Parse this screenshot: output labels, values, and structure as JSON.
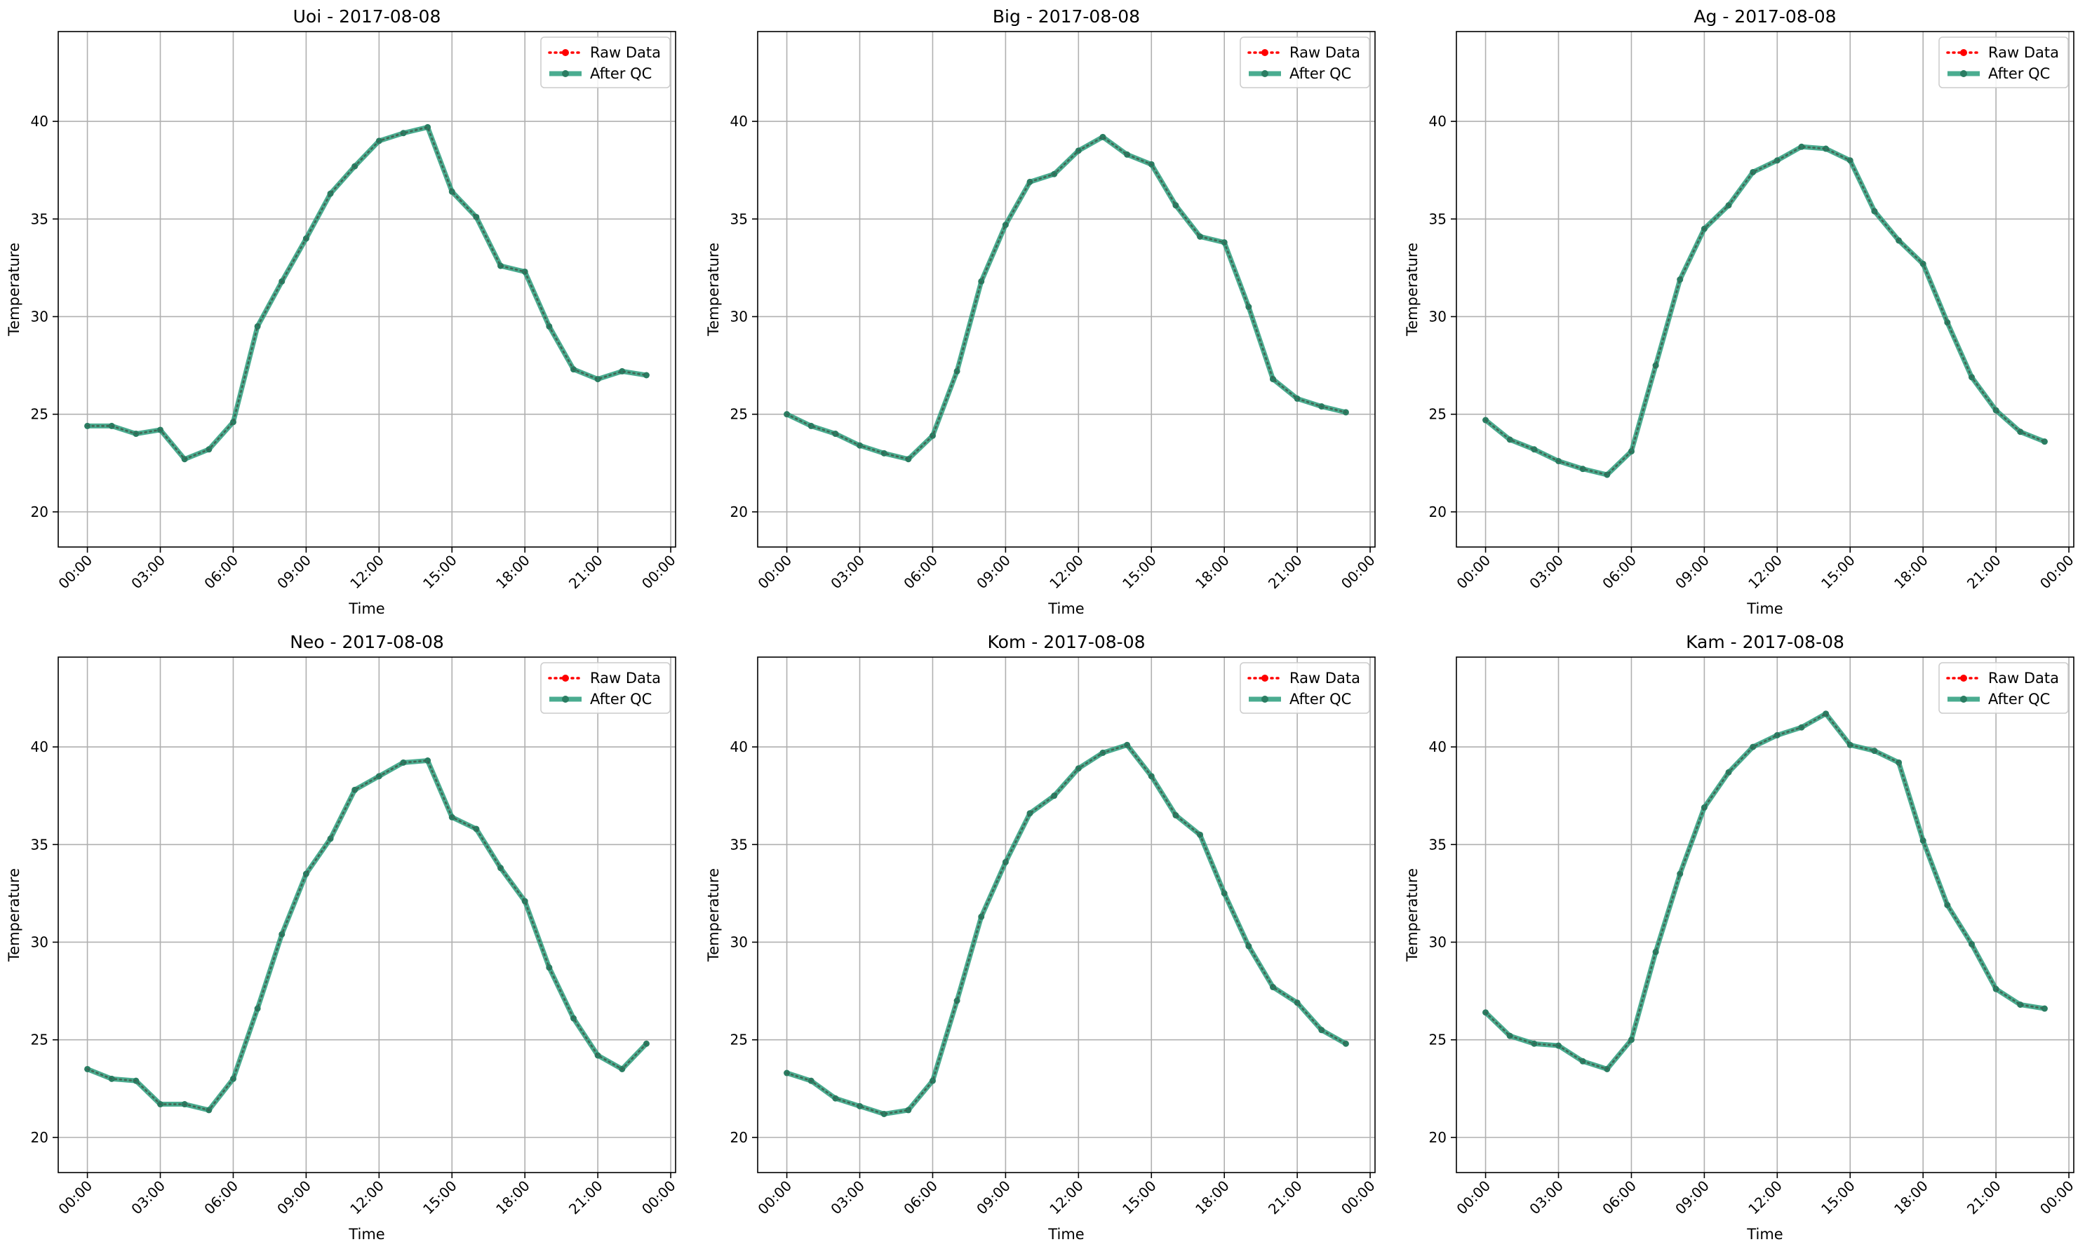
{
  "figure": {
    "colors": {
      "raw": "#ff0000",
      "qc": "#2a9d7c",
      "qc_marker": "#2a7d62",
      "grid": "#b0b0b0",
      "axes": "#000000"
    },
    "legend": [
      "Raw Data",
      "After QC"
    ],
    "legend_placement": "top-right",
    "grid": true,
    "xlabel": "Time",
    "ylabel": "Temperature"
  },
  "chart_data": [
    {
      "type": "line",
      "title": "Uoi - 2017-08-08",
      "xlabel": "Time",
      "ylabel": "Temperature",
      "x_unit": "hour",
      "x": [
        0,
        1,
        2,
        3,
        4,
        5,
        6,
        7,
        8,
        9,
        10,
        11,
        12,
        13,
        14,
        15,
        16,
        17,
        18,
        19,
        20,
        21,
        22,
        23
      ],
      "xlim": [
        -1.2,
        24.2
      ],
      "ylim": [
        18.2,
        44.6
      ],
      "xticks": [
        0,
        3,
        6,
        9,
        12,
        15,
        18,
        21,
        24
      ],
      "xtick_labels": [
        "00:00",
        "03:00",
        "06:00",
        "09:00",
        "12:00",
        "15:00",
        "18:00",
        "21:00",
        "00:00"
      ],
      "yticks": [
        20,
        25,
        30,
        35,
        40
      ],
      "ytick_labels": [
        "20",
        "25",
        "30",
        "35",
        "40"
      ],
      "grid": true,
      "legend_placement": "top-right",
      "series": [
        {
          "name": "Raw Data",
          "values": [
            24.4,
            24.4,
            24.0,
            24.2,
            22.7,
            23.2,
            24.6,
            29.5,
            31.8,
            34.0,
            36.3,
            37.7,
            39.0,
            39.4,
            39.7,
            36.4,
            35.1,
            32.6,
            32.3,
            29.5,
            27.3,
            26.8,
            27.2,
            27.0
          ]
        },
        {
          "name": "After QC",
          "values": [
            24.4,
            24.4,
            24.0,
            24.2,
            22.7,
            23.2,
            24.6,
            29.5,
            31.8,
            34.0,
            36.3,
            37.7,
            39.0,
            39.4,
            39.7,
            36.4,
            35.1,
            32.6,
            32.3,
            29.5,
            27.3,
            26.8,
            27.2,
            27.0
          ]
        }
      ]
    },
    {
      "type": "line",
      "title": "Big - 2017-08-08",
      "xlabel": "Time",
      "ylabel": "Temperature",
      "x_unit": "hour",
      "x": [
        0,
        1,
        2,
        3,
        4,
        5,
        6,
        7,
        8,
        9,
        10,
        11,
        12,
        13,
        14,
        15,
        16,
        17,
        18,
        19,
        20,
        21,
        22,
        23
      ],
      "xlim": [
        -1.2,
        24.2
      ],
      "ylim": [
        18.2,
        44.6
      ],
      "xticks": [
        0,
        3,
        6,
        9,
        12,
        15,
        18,
        21,
        24
      ],
      "xtick_labels": [
        "00:00",
        "03:00",
        "06:00",
        "09:00",
        "12:00",
        "15:00",
        "18:00",
        "21:00",
        "00:00"
      ],
      "yticks": [
        20,
        25,
        30,
        35,
        40
      ],
      "ytick_labels": [
        "20",
        "25",
        "30",
        "35",
        "40"
      ],
      "grid": true,
      "legend_placement": "top-right",
      "series": [
        {
          "name": "Raw Data",
          "values": [
            25.0,
            24.4,
            24.0,
            23.4,
            23.0,
            22.7,
            23.9,
            27.2,
            31.8,
            34.7,
            36.9,
            37.3,
            38.5,
            39.2,
            38.3,
            37.8,
            35.7,
            34.1,
            33.8,
            30.5,
            26.8,
            25.8,
            25.4,
            25.1
          ]
        },
        {
          "name": "After QC",
          "values": [
            25.0,
            24.4,
            24.0,
            23.4,
            23.0,
            22.7,
            23.9,
            27.2,
            31.8,
            34.7,
            36.9,
            37.3,
            38.5,
            39.2,
            38.3,
            37.8,
            35.7,
            34.1,
            33.8,
            30.5,
            26.8,
            25.8,
            25.4,
            25.1
          ]
        }
      ]
    },
    {
      "type": "line",
      "title": "Ag - 2017-08-08",
      "xlabel": "Time",
      "ylabel": "Temperature",
      "x_unit": "hour",
      "x": [
        0,
        1,
        2,
        3,
        4,
        5,
        6,
        7,
        8,
        9,
        10,
        11,
        12,
        13,
        14,
        15,
        16,
        17,
        18,
        19,
        20,
        21,
        22,
        23
      ],
      "xlim": [
        -1.2,
        24.2
      ],
      "ylim": [
        18.2,
        44.6
      ],
      "xticks": [
        0,
        3,
        6,
        9,
        12,
        15,
        18,
        21,
        24
      ],
      "xtick_labels": [
        "00:00",
        "03:00",
        "06:00",
        "09:00",
        "12:00",
        "15:00",
        "18:00",
        "21:00",
        "00:00"
      ],
      "yticks": [
        20,
        25,
        30,
        35,
        40
      ],
      "ytick_labels": [
        "20",
        "25",
        "30",
        "35",
        "40"
      ],
      "grid": true,
      "legend_placement": "top-right",
      "series": [
        {
          "name": "Raw Data",
          "values": [
            24.7,
            23.7,
            23.2,
            22.6,
            22.2,
            21.9,
            23.1,
            27.5,
            31.9,
            34.5,
            35.7,
            37.4,
            38.0,
            38.7,
            38.6,
            38.0,
            35.4,
            33.9,
            32.7,
            29.7,
            26.9,
            25.2,
            24.1,
            23.6
          ]
        },
        {
          "name": "After QC",
          "values": [
            24.7,
            23.7,
            23.2,
            22.6,
            22.2,
            21.9,
            23.1,
            27.5,
            31.9,
            34.5,
            35.7,
            37.4,
            38.0,
            38.7,
            38.6,
            38.0,
            35.4,
            33.9,
            32.7,
            29.7,
            26.9,
            25.2,
            24.1,
            23.6
          ]
        }
      ]
    },
    {
      "type": "line",
      "title": "Neo - 2017-08-08",
      "xlabel": "Time",
      "ylabel": "Temperature",
      "x_unit": "hour",
      "x": [
        0,
        1,
        2,
        3,
        4,
        5,
        6,
        7,
        8,
        9,
        10,
        11,
        12,
        13,
        14,
        15,
        16,
        17,
        18,
        19,
        20,
        21,
        22,
        23
      ],
      "xlim": [
        -1.2,
        24.2
      ],
      "ylim": [
        18.2,
        44.6
      ],
      "xticks": [
        0,
        3,
        6,
        9,
        12,
        15,
        18,
        21,
        24
      ],
      "xtick_labels": [
        "00:00",
        "03:00",
        "06:00",
        "09:00",
        "12:00",
        "15:00",
        "18:00",
        "21:00",
        "00:00"
      ],
      "yticks": [
        20,
        25,
        30,
        35,
        40
      ],
      "ytick_labels": [
        "20",
        "25",
        "30",
        "35",
        "40"
      ],
      "grid": true,
      "legend_placement": "top-right",
      "series": [
        {
          "name": "Raw Data",
          "values": [
            23.5,
            23.0,
            22.9,
            21.7,
            21.7,
            21.4,
            23.0,
            26.6,
            30.4,
            33.5,
            35.3,
            37.8,
            38.5,
            39.2,
            39.3,
            36.4,
            35.8,
            33.8,
            32.1,
            28.7,
            26.1,
            24.2,
            23.5,
            24.8
          ]
        },
        {
          "name": "After QC",
          "values": [
            23.5,
            23.0,
            22.9,
            21.7,
            21.7,
            21.4,
            23.0,
            26.6,
            30.4,
            33.5,
            35.3,
            37.8,
            38.5,
            39.2,
            39.3,
            36.4,
            35.8,
            33.8,
            32.1,
            28.7,
            26.1,
            24.2,
            23.5,
            24.8
          ]
        }
      ]
    },
    {
      "type": "line",
      "title": "Kom - 2017-08-08",
      "xlabel": "Time",
      "ylabel": "Temperature",
      "x_unit": "hour",
      "x": [
        0,
        1,
        2,
        3,
        4,
        5,
        6,
        7,
        8,
        9,
        10,
        11,
        12,
        13,
        14,
        15,
        16,
        17,
        18,
        19,
        20,
        21,
        22,
        23
      ],
      "xlim": [
        -1.2,
        24.2
      ],
      "ylim": [
        18.2,
        44.6
      ],
      "xticks": [
        0,
        3,
        6,
        9,
        12,
        15,
        18,
        21,
        24
      ],
      "xtick_labels": [
        "00:00",
        "03:00",
        "06:00",
        "09:00",
        "12:00",
        "15:00",
        "18:00",
        "21:00",
        "00:00"
      ],
      "yticks": [
        20,
        25,
        30,
        35,
        40
      ],
      "ytick_labels": [
        "20",
        "25",
        "30",
        "35",
        "40"
      ],
      "grid": true,
      "legend_placement": "top-right",
      "series": [
        {
          "name": "Raw Data",
          "values": [
            23.3,
            22.9,
            22.0,
            21.6,
            21.2,
            21.4,
            22.9,
            27.0,
            31.3,
            34.1,
            36.6,
            37.5,
            38.9,
            39.7,
            40.1,
            38.5,
            36.5,
            35.5,
            32.5,
            29.8,
            27.7,
            26.9,
            25.5,
            24.8
          ]
        },
        {
          "name": "After QC",
          "values": [
            23.3,
            22.9,
            22.0,
            21.6,
            21.2,
            21.4,
            22.9,
            27.0,
            31.3,
            34.1,
            36.6,
            37.5,
            38.9,
            39.7,
            40.1,
            38.5,
            36.5,
            35.5,
            32.5,
            29.8,
            27.7,
            26.9,
            25.5,
            24.8
          ]
        }
      ]
    },
    {
      "type": "line",
      "title": "Kam - 2017-08-08",
      "xlabel": "Time",
      "ylabel": "Temperature",
      "x_unit": "hour",
      "x": [
        0,
        1,
        2,
        3,
        4,
        5,
        6,
        7,
        8,
        9,
        10,
        11,
        12,
        13,
        14,
        15,
        16,
        17,
        18,
        19,
        20,
        21,
        22,
        23
      ],
      "xlim": [
        -1.2,
        24.2
      ],
      "ylim": [
        18.2,
        44.6
      ],
      "xticks": [
        0,
        3,
        6,
        9,
        12,
        15,
        18,
        21,
        24
      ],
      "xtick_labels": [
        "00:00",
        "03:00",
        "06:00",
        "09:00",
        "12:00",
        "15:00",
        "18:00",
        "21:00",
        "00:00"
      ],
      "yticks": [
        20,
        25,
        30,
        35,
        40
      ],
      "ytick_labels": [
        "20",
        "25",
        "30",
        "35",
        "40"
      ],
      "grid": true,
      "legend_placement": "top-right",
      "series": [
        {
          "name": "Raw Data",
          "values": [
            26.4,
            25.2,
            24.8,
            24.7,
            23.9,
            23.5,
            25.0,
            29.5,
            33.5,
            36.9,
            38.7,
            40.0,
            40.6,
            41.0,
            41.7,
            40.1,
            39.8,
            39.2,
            35.2,
            31.9,
            29.9,
            27.6,
            26.8,
            26.6
          ]
        },
        {
          "name": "After QC",
          "values": [
            26.4,
            25.2,
            24.8,
            24.7,
            23.9,
            23.5,
            25.0,
            29.5,
            33.5,
            36.9,
            38.7,
            40.0,
            40.6,
            41.0,
            41.7,
            40.1,
            39.8,
            39.2,
            35.2,
            31.9,
            29.9,
            27.6,
            26.8,
            26.6
          ]
        }
      ]
    }
  ]
}
